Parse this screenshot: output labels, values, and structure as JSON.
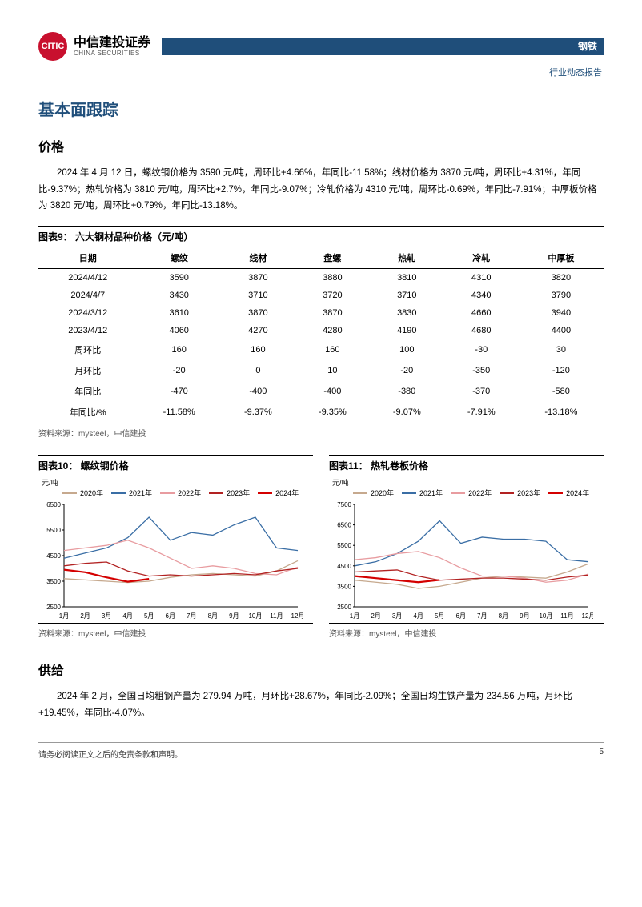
{
  "brand": {
    "cn": "中信建投证券",
    "en": "CHINA SECURITIES"
  },
  "header": {
    "category": "钢铁",
    "subtitle": "行业动态报告"
  },
  "h1": "基本面跟踪",
  "price": {
    "h2": "价格",
    "para": "2024 年 4 月 12 日，螺纹钢价格为 3590 元/吨，周环比+4.66%，年同比-11.58%；线材价格为 3870 元/吨，周环比+4.31%，年同比-9.37%；热轧价格为 3810 元/吨，周环比+2.7%，年同比-9.07%；冷轧价格为 4310 元/吨，周环比-0.69%，年同比-7.91%；中厚板价格为 3820 元/吨，周环比+0.79%，年同比-13.18%。"
  },
  "table9": {
    "title": "图表9：  六大钢材品种价格（元/吨）",
    "headers": [
      "日期",
      "螺纹",
      "线材",
      "盘螺",
      "热轧",
      "冷轧",
      "中厚板"
    ],
    "rows": [
      [
        "2024/4/12",
        "3590",
        "3870",
        "3880",
        "3810",
        "4310",
        "3820"
      ],
      [
        "2024/4/7",
        "3430",
        "3710",
        "3720",
        "3710",
        "4340",
        "3790"
      ],
      [
        "2024/3/12",
        "3610",
        "3870",
        "3870",
        "3830",
        "4660",
        "3940"
      ],
      [
        "2023/4/12",
        "4060",
        "4270",
        "4280",
        "4190",
        "4680",
        "4400"
      ],
      [
        "周环比",
        "160",
        "160",
        "160",
        "100",
        "-30",
        "30"
      ],
      [
        "月环比",
        "-20",
        "0",
        "10",
        "-20",
        "-350",
        "-120"
      ],
      [
        "年同比",
        "-470",
        "-400",
        "-400",
        "-380",
        "-370",
        "-580"
      ],
      [
        "年同比/%",
        "-11.58%",
        "-9.37%",
        "-9.35%",
        "-9.07%",
        "-7.91%",
        "-13.18%"
      ]
    ],
    "source": "资料来源：mysteel，中信建投"
  },
  "chart10": {
    "title": "图表10：  螺纹钢价格",
    "ylabel": "元/吨",
    "ylim": [
      2500,
      6500
    ],
    "yticks": [
      2500,
      3500,
      4500,
      5500,
      6500
    ],
    "xticks": [
      "1月",
      "2月",
      "3月",
      "4月",
      "5月",
      "6月",
      "7月",
      "8月",
      "9月",
      "10月",
      "11月",
      "12月"
    ],
    "legend": [
      {
        "label": "2020年",
        "color": "#c6a98e"
      },
      {
        "label": "2021年",
        "color": "#3a6ea5"
      },
      {
        "label": "2022年",
        "color": "#e89ca0"
      },
      {
        "label": "2023年",
        "color": "#b22222"
      },
      {
        "label": "2024年",
        "color": "#d40000",
        "bold": true
      }
    ],
    "series": {
      "2020": [
        3600,
        3550,
        3500,
        3450,
        3500,
        3650,
        3750,
        3800,
        3750,
        3700,
        3900,
        4300
      ],
      "2021": [
        4400,
        4600,
        4800,
        5200,
        6000,
        5100,
        5400,
        5300,
        5700,
        6000,
        4800,
        4700
      ],
      "2022": [
        4700,
        4800,
        4900,
        5100,
        4800,
        4400,
        4000,
        4100,
        4000,
        3800,
        3750,
        4050
      ],
      "2023": [
        4100,
        4200,
        4250,
        3900,
        3700,
        3750,
        3700,
        3750,
        3800,
        3750,
        3900,
        4000
      ],
      "2024": [
        3950,
        3850,
        3650,
        3480,
        3590
      ]
    },
    "source": "资料来源：mysteel，中信建投"
  },
  "chart11": {
    "title": "图表11：  热轧卷板价格",
    "ylabel": "元/吨",
    "ylim": [
      2500,
      7500
    ],
    "yticks": [
      2500,
      3500,
      4500,
      5500,
      6500,
      7500
    ],
    "xticks": [
      "1月",
      "2月",
      "3月",
      "4月",
      "5月",
      "6月",
      "7月",
      "8月",
      "9月",
      "10月",
      "11月",
      "12月"
    ],
    "legend": [
      {
        "label": "2020年",
        "color": "#c6a98e"
      },
      {
        "label": "2021年",
        "color": "#3a6ea5"
      },
      {
        "label": "2022年",
        "color": "#e89ca0"
      },
      {
        "label": "2023年",
        "color": "#b22222"
      },
      {
        "label": "2024年",
        "color": "#d40000",
        "bold": true
      }
    ],
    "series": {
      "2020": [
        3800,
        3700,
        3600,
        3400,
        3500,
        3700,
        3900,
        4000,
        3950,
        3900,
        4200,
        4600
      ],
      "2021": [
        4500,
        4700,
        5100,
        5700,
        6700,
        5600,
        5900,
        5800,
        5800,
        5700,
        4800,
        4700
      ],
      "2022": [
        4800,
        4900,
        5100,
        5200,
        4900,
        4400,
        4000,
        4000,
        3900,
        3700,
        3800,
        4100
      ],
      "2023": [
        4200,
        4250,
        4300,
        4000,
        3800,
        3850,
        3900,
        3900,
        3850,
        3800,
        3950,
        4050
      ],
      "2024": [
        4000,
        3900,
        3800,
        3700,
        3810
      ]
    },
    "source": "资料来源：mysteel，中信建投"
  },
  "supply": {
    "h2": "供给",
    "para": "2024 年 2 月，全国日均粗钢产量为 279.94 万吨，月环比+28.67%，年同比-2.09%；全国日均生铁产量为 234.56 万吨，月环比+19.45%，年同比-4.07%。"
  },
  "footer": {
    "disclaimer": "请务必阅读正文之后的免责条款和声明。",
    "page": "5"
  },
  "style": {
    "primary": "#1f4e7a",
    "logo_red": "#c8102e"
  }
}
